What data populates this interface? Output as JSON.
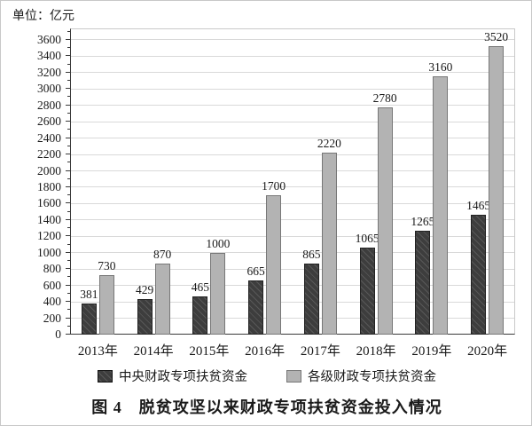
{
  "chart_data": {
    "type": "bar",
    "title": "图 4　脱贫攻坚以来财政专项扶贫资金投入情况",
    "unit_label": "单位：亿元",
    "categories": [
      "2013年",
      "2014年",
      "2015年",
      "2016年",
      "2017年",
      "2018年",
      "2019年",
      "2020年"
    ],
    "series": [
      {
        "name": "中央财政专项扶贫资金",
        "style": "dark-hatched",
        "values": [
          381,
          429,
          465,
          665,
          865,
          1065,
          1265,
          1465
        ]
      },
      {
        "name": "各级财政专项扶贫资金",
        "style": "light-gray",
        "values": [
          730,
          870,
          1000,
          1700,
          2220,
          2780,
          3160,
          3520
        ]
      }
    ],
    "ylim": [
      0,
      3740
    ],
    "yticks": [
      0,
      200,
      400,
      600,
      800,
      1000,
      1200,
      1400,
      1600,
      1800,
      2000,
      2200,
      2400,
      2600,
      2800,
      3000,
      3200,
      3400,
      3600
    ],
    "ytick_minor_step": 100,
    "grid": "horizontal",
    "legend_position": "bottom",
    "data_labels": true
  },
  "colors": {
    "dark_bar": "#3d3d3d",
    "dark_bar_hatch": "#585858",
    "light_bar": "#b3b3b3",
    "light_bar_border": "#777777",
    "grid": "#d9d9d9",
    "axis": "#3a3a3a",
    "frame": "#c9c9c9",
    "text": "#1a1a1a"
  }
}
